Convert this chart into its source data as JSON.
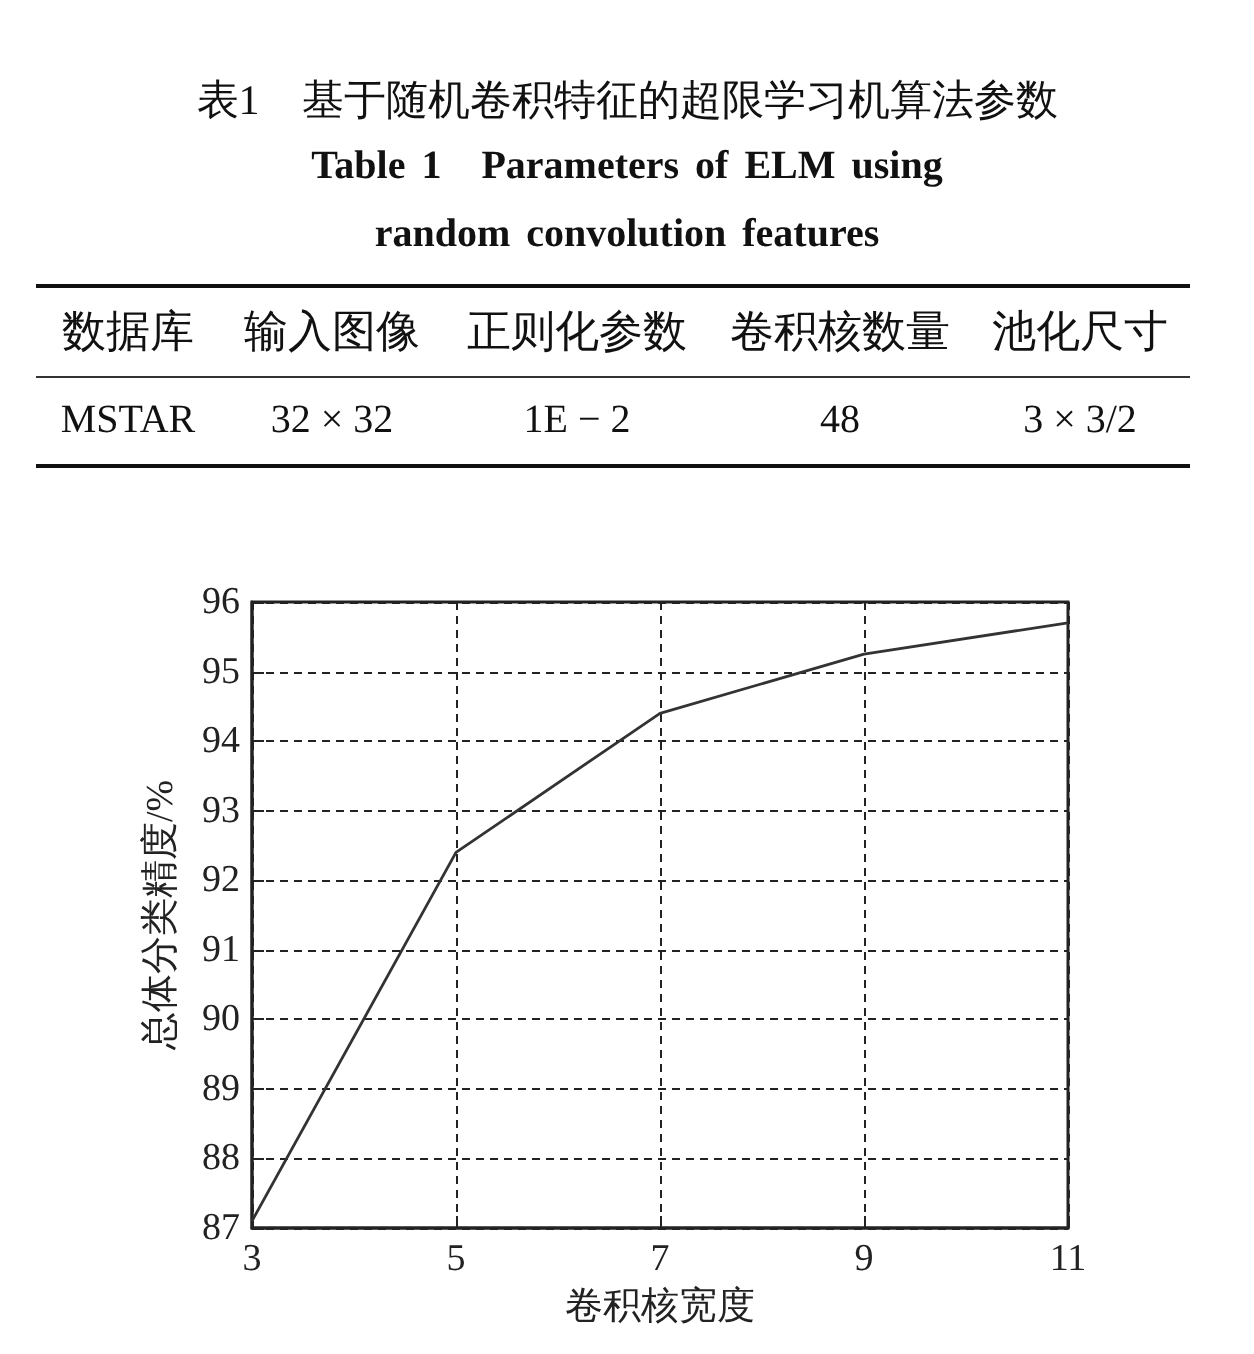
{
  "chart_data": [
    {
      "type": "other",
      "title": "表1　基于随机卷积特征的超限学习机算法参数",
      "subtitle": "Table 1　Parameters of ELM using random convolution features",
      "categories": [
        "数据库",
        "输入图像",
        "正则化参数",
        "卷积核数量",
        "池化尺寸"
      ],
      "annotations": [
        "MSTAR",
        "32 × 32",
        "1E − 2",
        "48",
        "3 × 3/2"
      ]
    },
    {
      "type": "line",
      "xlabel": "卷积核宽度",
      "ylabel": "总体分类精度/%",
      "x": [
        3,
        5,
        7,
        9,
        11
      ],
      "values": [
        87.1,
        92.4,
        94.4,
        95.25,
        95.7
      ],
      "color": "#333333",
      "xlim": [
        3,
        11
      ],
      "xticks": [
        3,
        5,
        7,
        9,
        11
      ],
      "ylim": [
        87,
        96
      ],
      "yticks": [
        87,
        88,
        89,
        90,
        91,
        92,
        93,
        94,
        95,
        96
      ],
      "grid": true,
      "marker": "none"
    }
  ]
}
